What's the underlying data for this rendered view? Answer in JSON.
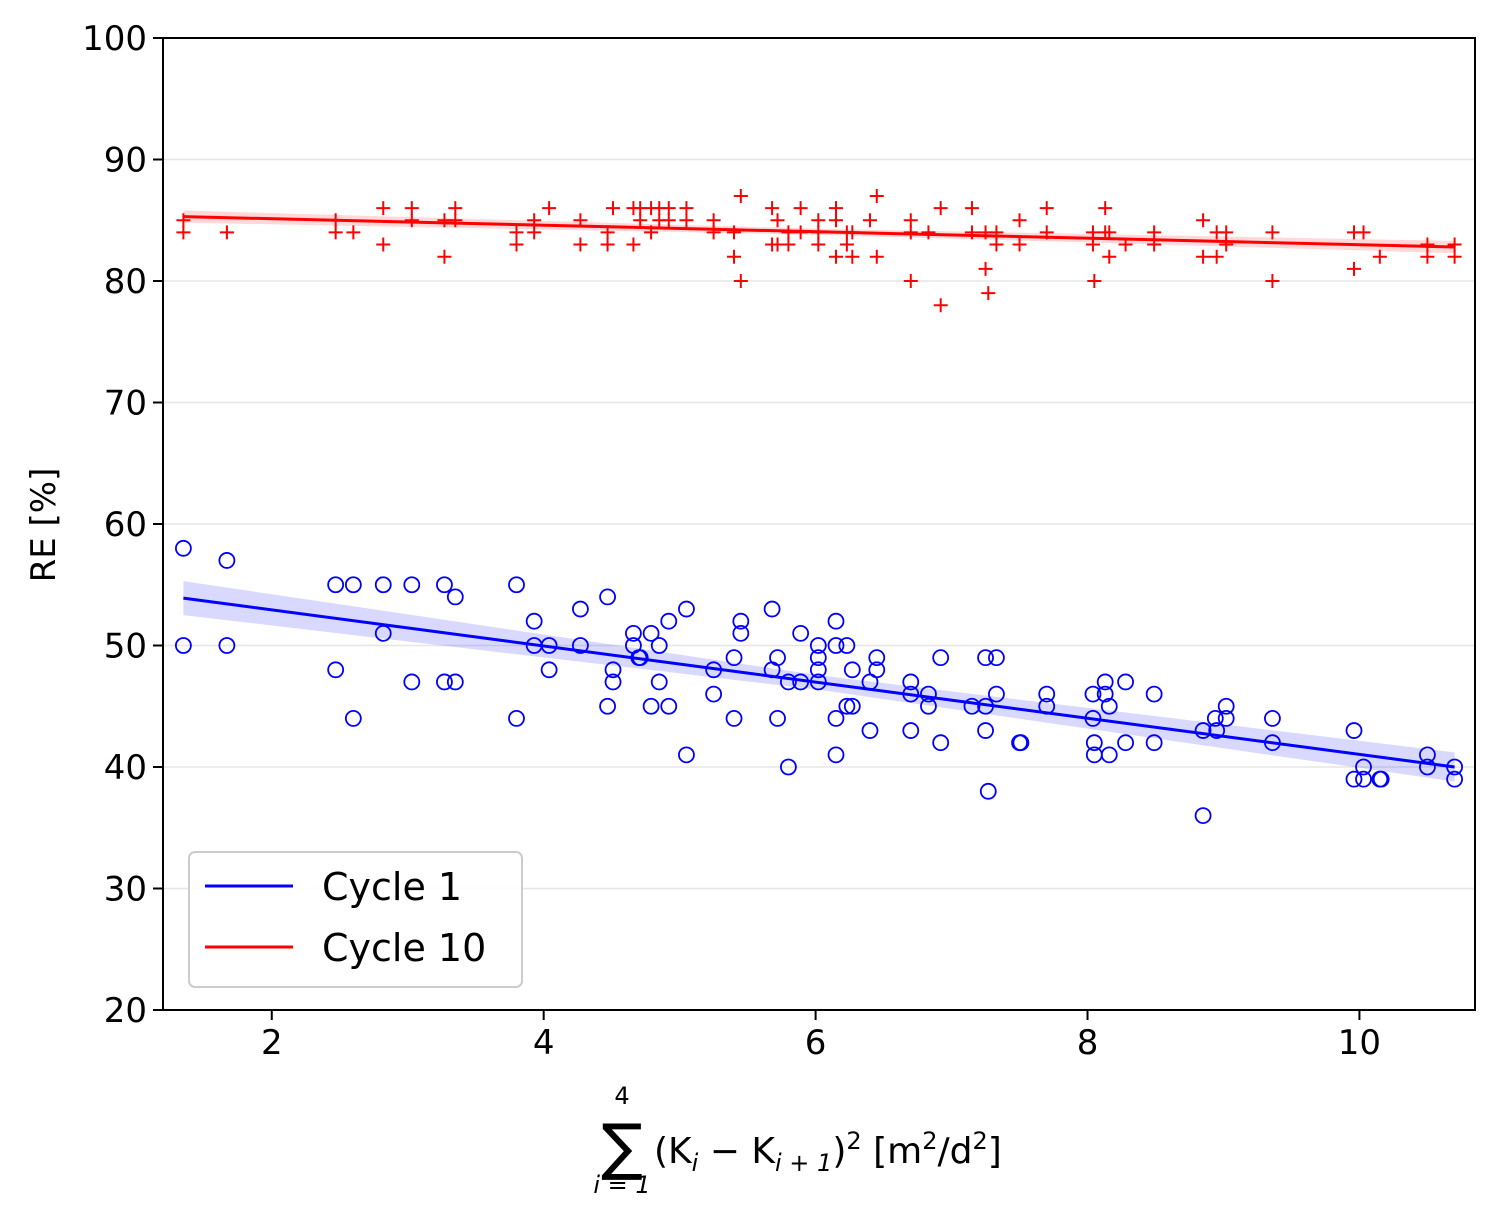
{
  "chart_data": {
    "type": "scatter",
    "title": "",
    "ylabel": "RE [%]",
    "xlabel": {
      "sum_symbol": "∑",
      "sum_upper": "4",
      "sum_lower": "i = 1",
      "expression": "(K",
      "k1_sub": "i",
      "minus": " − K",
      "k2_sub": "i + 1",
      "close": ")",
      "power": "2",
      "unit_open": " [m",
      "unit_power1": "2",
      "unit_mid": "/d",
      "unit_power2": "2",
      "unit_close": "]"
    },
    "xlim": [
      1.2,
      10.85
    ],
    "ylim": [
      20,
      100
    ],
    "xticks": [
      2,
      4,
      6,
      8,
      10
    ],
    "yticks": [
      20,
      30,
      40,
      50,
      60,
      70,
      80,
      90,
      100
    ],
    "grid": "horizontal",
    "legend": {
      "position": "lower-left",
      "entries": [
        {
          "label": "Cycle 1",
          "color": "#0000ff"
        },
        {
          "label": "Cycle 10",
          "color": "#ff0000"
        }
      ]
    },
    "series": [
      {
        "name": "Cycle 1",
        "color": "#0000ff",
        "marker": "circle",
        "fit": {
          "x": [
            1.35,
            10.7
          ],
          "y": [
            53.9,
            40.0
          ],
          "ci_halfwidth": [
            1.4,
            0.6,
            1.2
          ]
        },
        "points": [
          [
            1.35,
            58
          ],
          [
            1.35,
            50
          ],
          [
            1.67,
            57
          ],
          [
            1.67,
            50
          ],
          [
            2.47,
            55
          ],
          [
            2.47,
            48
          ],
          [
            2.6,
            55
          ],
          [
            2.6,
            44
          ],
          [
            2.82,
            55
          ],
          [
            2.82,
            51
          ],
          [
            3.03,
            55
          ],
          [
            3.03,
            47
          ],
          [
            3.27,
            55
          ],
          [
            3.27,
            47
          ],
          [
            3.35,
            54
          ],
          [
            3.35,
            47
          ],
          [
            3.8,
            55
          ],
          [
            3.8,
            44
          ],
          [
            3.93,
            52
          ],
          [
            3.93,
            50
          ],
          [
            4.04,
            50
          ],
          [
            4.04,
            48
          ],
          [
            4.27,
            53
          ],
          [
            4.27,
            50
          ],
          [
            4.47,
            54
          ],
          [
            4.47,
            45
          ],
          [
            4.51,
            48
          ],
          [
            4.51,
            47
          ],
          [
            4.66,
            51
          ],
          [
            4.66,
            50
          ],
          [
            4.7,
            49
          ],
          [
            4.71,
            49
          ],
          [
            4.79,
            51
          ],
          [
            4.79,
            45
          ],
          [
            4.85,
            50
          ],
          [
            4.85,
            47
          ],
          [
            4.92,
            52
          ],
          [
            4.92,
            45
          ],
          [
            5.05,
            53
          ],
          [
            5.05,
            41
          ],
          [
            5.25,
            48
          ],
          [
            5.25,
            46
          ],
          [
            5.4,
            49
          ],
          [
            5.4,
            44
          ],
          [
            5.45,
            52
          ],
          [
            5.45,
            51
          ],
          [
            5.68,
            53
          ],
          [
            5.68,
            48
          ],
          [
            5.72,
            49
          ],
          [
            5.72,
            44
          ],
          [
            5.8,
            47
          ],
          [
            5.8,
            40
          ],
          [
            5.89,
            51
          ],
          [
            5.89,
            47
          ],
          [
            6.02,
            50
          ],
          [
            6.02,
            49
          ],
          [
            6.02,
            48
          ],
          [
            6.02,
            47
          ],
          [
            6.15,
            52
          ],
          [
            6.15,
            50
          ],
          [
            6.15,
            44
          ],
          [
            6.15,
            41
          ],
          [
            6.23,
            50
          ],
          [
            6.23,
            45
          ],
          [
            6.27,
            48
          ],
          [
            6.27,
            45
          ],
          [
            6.4,
            47
          ],
          [
            6.4,
            43
          ],
          [
            6.45,
            49
          ],
          [
            6.45,
            48
          ],
          [
            6.7,
            47
          ],
          [
            6.7,
            46
          ],
          [
            6.7,
            43
          ],
          [
            6.83,
            46
          ],
          [
            6.83,
            45
          ],
          [
            6.92,
            49
          ],
          [
            6.92,
            42
          ],
          [
            7.15,
            45
          ],
          [
            7.25,
            49
          ],
          [
            7.25,
            45
          ],
          [
            7.25,
            43
          ],
          [
            7.27,
            38
          ],
          [
            7.33,
            49
          ],
          [
            7.33,
            46
          ],
          [
            7.5,
            42
          ],
          [
            7.51,
            42
          ],
          [
            7.7,
            46
          ],
          [
            7.7,
            45
          ],
          [
            8.04,
            46
          ],
          [
            8.04,
            44
          ],
          [
            8.05,
            42
          ],
          [
            8.05,
            41
          ],
          [
            8.13,
            47
          ],
          [
            8.13,
            46
          ],
          [
            8.16,
            45
          ],
          [
            8.16,
            41
          ],
          [
            8.28,
            47
          ],
          [
            8.28,
            42
          ],
          [
            8.49,
            46
          ],
          [
            8.49,
            42
          ],
          [
            8.85,
            43
          ],
          [
            8.85,
            36
          ],
          [
            8.94,
            44
          ],
          [
            8.95,
            43
          ],
          [
            9.02,
            45
          ],
          [
            9.02,
            44
          ],
          [
            9.36,
            44
          ],
          [
            9.36,
            42
          ],
          [
            9.96,
            43
          ],
          [
            9.96,
            39
          ],
          [
            10.03,
            40
          ],
          [
            10.03,
            39
          ],
          [
            10.15,
            39
          ],
          [
            10.16,
            39
          ],
          [
            10.5,
            41
          ],
          [
            10.5,
            40
          ],
          [
            10.7,
            40
          ],
          [
            10.7,
            39
          ]
        ]
      },
      {
        "name": "Cycle 10",
        "color": "#ff0000",
        "marker": "plus",
        "fit": {
          "x": [
            1.35,
            10.7
          ],
          "y": [
            85.3,
            82.8
          ],
          "ci_halfwidth": [
            0.5,
            0.25,
            0.5
          ]
        },
        "points": [
          [
            1.35,
            85
          ],
          [
            1.35,
            84
          ],
          [
            1.67,
            84
          ],
          [
            2.47,
            85
          ],
          [
            2.47,
            84
          ],
          [
            2.6,
            84
          ],
          [
            2.82,
            86
          ],
          [
            2.82,
            83
          ],
          [
            3.03,
            86
          ],
          [
            3.03,
            85
          ],
          [
            3.27,
            85
          ],
          [
            3.27,
            82
          ],
          [
            3.35,
            86
          ],
          [
            3.35,
            85
          ],
          [
            3.8,
            84
          ],
          [
            3.8,
            83
          ],
          [
            3.93,
            85
          ],
          [
            3.93,
            84
          ],
          [
            4.04,
            86
          ],
          [
            4.27,
            85
          ],
          [
            4.27,
            83
          ],
          [
            4.47,
            84
          ],
          [
            4.47,
            83
          ],
          [
            4.51,
            86
          ],
          [
            4.66,
            86
          ],
          [
            4.66,
            83
          ],
          [
            4.71,
            86
          ],
          [
            4.71,
            85
          ],
          [
            4.79,
            86
          ],
          [
            4.79,
            84
          ],
          [
            4.85,
            86
          ],
          [
            4.85,
            85
          ],
          [
            4.92,
            86
          ],
          [
            4.92,
            85
          ],
          [
            5.05,
            86
          ],
          [
            5.05,
            85
          ],
          [
            5.25,
            85
          ],
          [
            5.25,
            84
          ],
          [
            5.4,
            84
          ],
          [
            5.4,
            82
          ],
          [
            5.45,
            87
          ],
          [
            5.45,
            80
          ],
          [
            5.68,
            86
          ],
          [
            5.68,
            83
          ],
          [
            5.72,
            85
          ],
          [
            5.72,
            83
          ],
          [
            5.8,
            84
          ],
          [
            5.8,
            83
          ],
          [
            5.89,
            86
          ],
          [
            5.89,
            84
          ],
          [
            6.02,
            85
          ],
          [
            6.02,
            84
          ],
          [
            6.02,
            83
          ],
          [
            6.15,
            86
          ],
          [
            6.15,
            85
          ],
          [
            6.15,
            82
          ],
          [
            6.23,
            84
          ],
          [
            6.23,
            83
          ],
          [
            6.27,
            84
          ],
          [
            6.27,
            82
          ],
          [
            6.4,
            85
          ],
          [
            6.45,
            87
          ],
          [
            6.45,
            82
          ],
          [
            6.7,
            85
          ],
          [
            6.7,
            84
          ],
          [
            6.7,
            80
          ],
          [
            6.83,
            84
          ],
          [
            6.92,
            86
          ],
          [
            6.92,
            78
          ],
          [
            7.15,
            86
          ],
          [
            7.15,
            84
          ],
          [
            7.25,
            84
          ],
          [
            7.25,
            81
          ],
          [
            7.27,
            79
          ],
          [
            7.33,
            84
          ],
          [
            7.33,
            83
          ],
          [
            7.5,
            85
          ],
          [
            7.5,
            83
          ],
          [
            7.7,
            86
          ],
          [
            7.7,
            84
          ],
          [
            8.04,
            84
          ],
          [
            8.04,
            83
          ],
          [
            8.05,
            80
          ],
          [
            8.13,
            86
          ],
          [
            8.13,
            84
          ],
          [
            8.16,
            84
          ],
          [
            8.16,
            82
          ],
          [
            8.28,
            83
          ],
          [
            8.49,
            84
          ],
          [
            8.49,
            83
          ],
          [
            8.85,
            85
          ],
          [
            8.85,
            82
          ],
          [
            8.95,
            84
          ],
          [
            8.95,
            82
          ],
          [
            9.02,
            84
          ],
          [
            9.02,
            83
          ],
          [
            9.36,
            84
          ],
          [
            9.36,
            80
          ],
          [
            9.96,
            84
          ],
          [
            9.96,
            81
          ],
          [
            10.03,
            84
          ],
          [
            10.15,
            82
          ],
          [
            10.5,
            83
          ],
          [
            10.5,
            82
          ],
          [
            10.7,
            83
          ],
          [
            10.7,
            82
          ]
        ]
      }
    ]
  }
}
